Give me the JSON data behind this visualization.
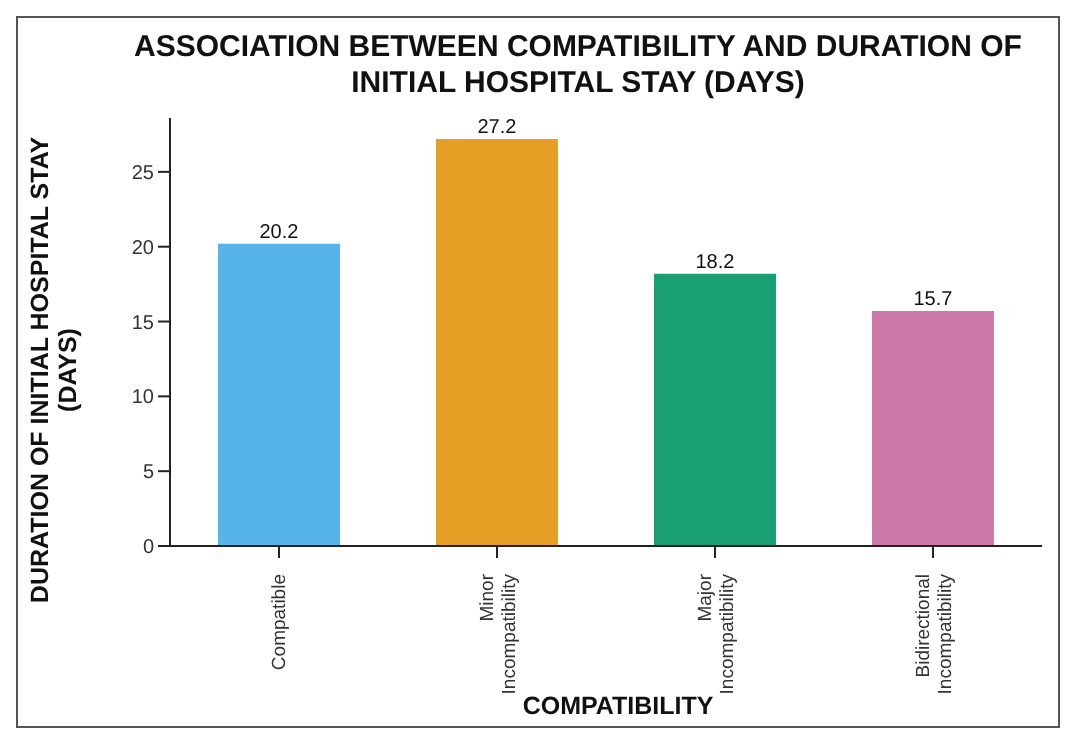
{
  "chart_data": {
    "type": "bar",
    "title": "ASSOCIATION BETWEEN COMPATIBILITY AND DURATION OF INITIAL HOSPITAL STAY (DAYS)",
    "xlabel": "COMPATIBILITY",
    "ylabel": "DURATION OF INITIAL HOSPITAL STAY (DAYS)",
    "categories": [
      "Compatible",
      "Minor Incompatibility",
      "Major Incompatibility",
      "Bidirectional Incompatibility"
    ],
    "values": [
      20.2,
      27.2,
      18.2,
      15.7
    ],
    "colors": [
      "#56b4e9",
      "#e69f25",
      "#1a9e74",
      "#cc79a7"
    ],
    "ylim": [
      0,
      28.6
    ],
    "yticks": [
      0,
      5,
      10,
      15,
      20,
      25
    ],
    "data_labels": true,
    "grid": false
  }
}
